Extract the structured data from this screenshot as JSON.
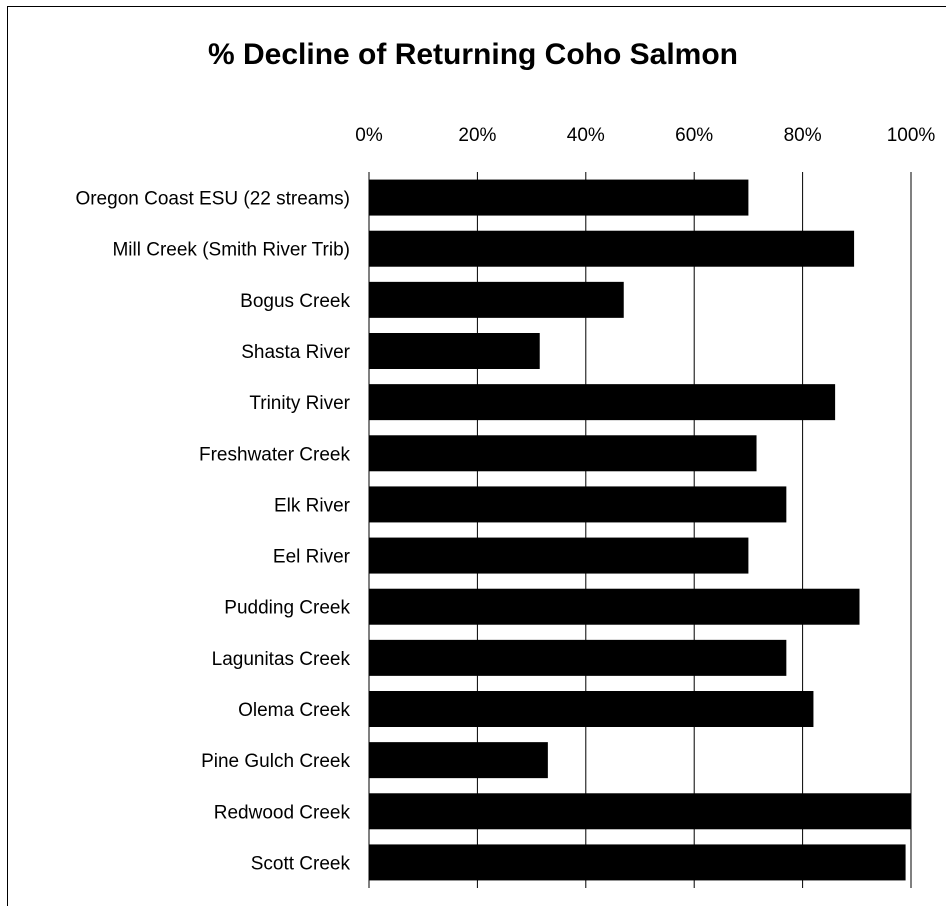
{
  "chart_data": {
    "type": "bar",
    "orientation": "horizontal",
    "title": "% Decline of Returning Coho Salmon",
    "xlabel": "",
    "ylabel": "",
    "xlim": [
      0,
      100
    ],
    "x_ticks": [
      "0%",
      "20%",
      "40%",
      "60%",
      "80%",
      "100%"
    ],
    "x_axis_position": "top",
    "grid": "vertical",
    "bar_color": "#000000",
    "categories": [
      "Oregon Coast ESU (22 streams)",
      "Mill Creek (Smith River Trib)",
      "Bogus Creek",
      "Shasta River",
      "Trinity River",
      "Freshwater Creek",
      "Elk River",
      "Eel River",
      "Pudding Creek",
      "Lagunitas Creek",
      "Olema Creek",
      "Pine Gulch Creek",
      "Redwood Creek",
      "Scott Creek"
    ],
    "values": [
      70,
      89.5,
      47,
      31.5,
      86,
      71.5,
      77,
      70,
      90.5,
      77,
      82,
      33,
      100,
      99
    ]
  }
}
